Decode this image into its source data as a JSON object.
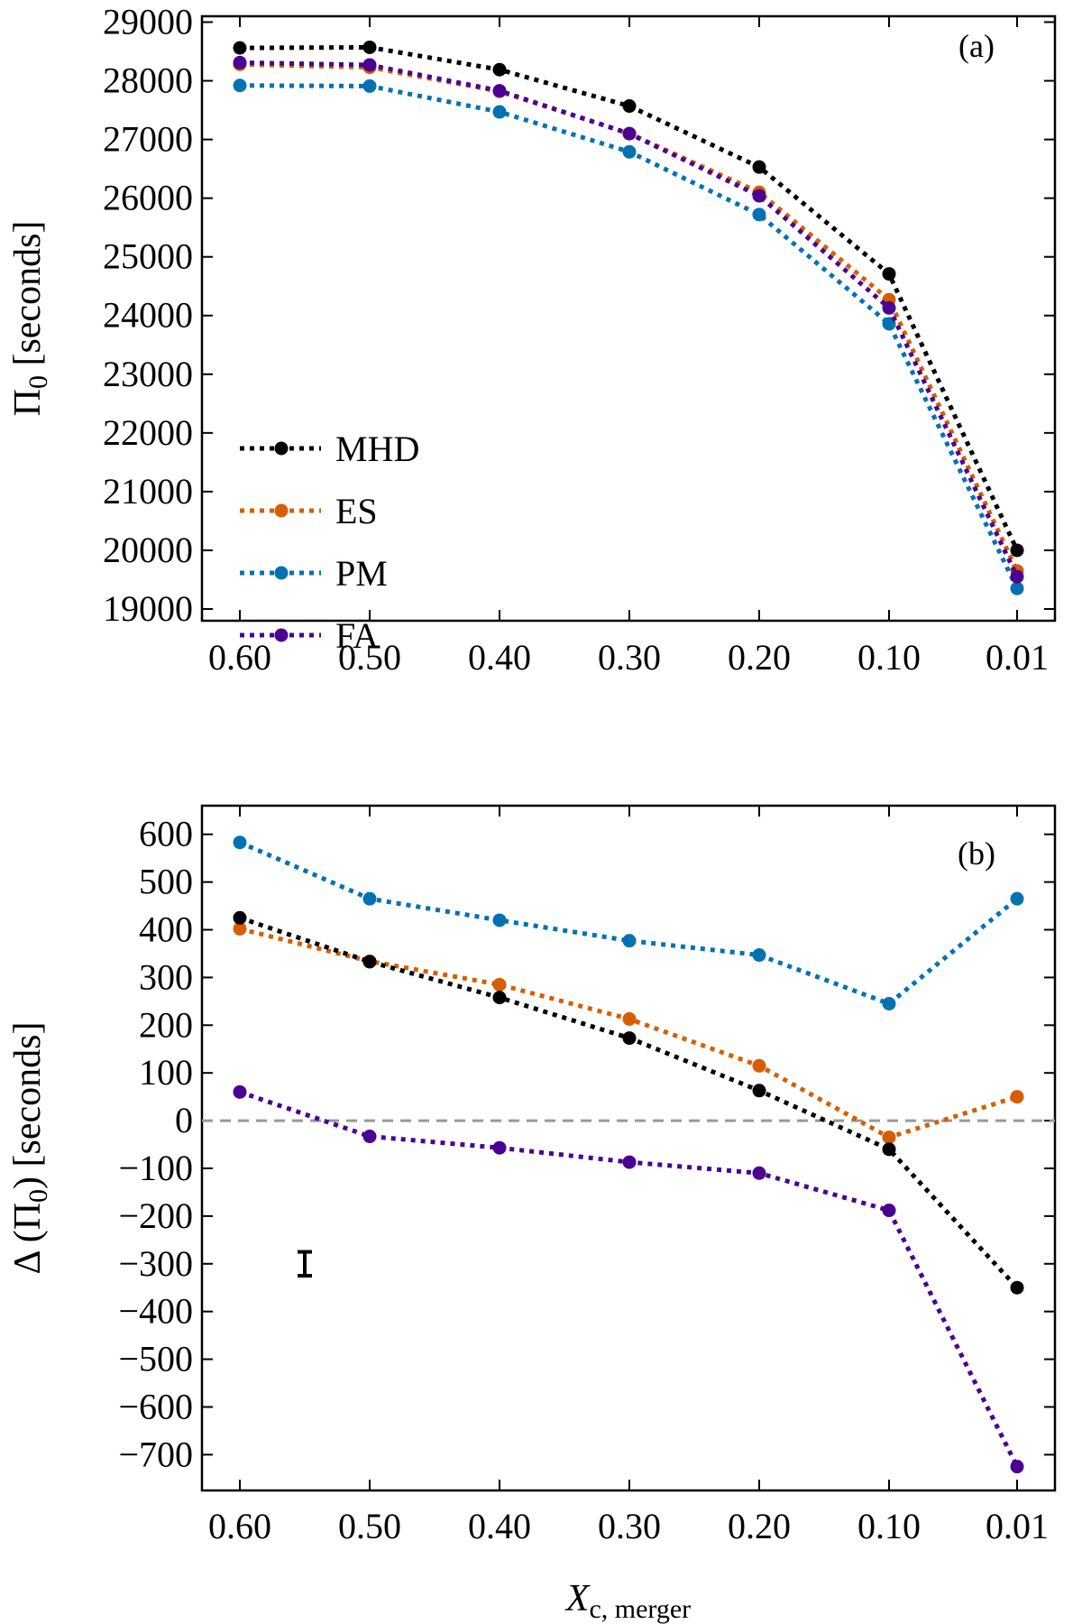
{
  "chart_data": [
    {
      "panel": "a",
      "type": "line",
      "panel_label": "(a)",
      "ylabel": "Π",
      "ylabel_sub": "0",
      "ylabel_unit": " [seconds]",
      "categories": [
        "0.60",
        "0.50",
        "0.40",
        "0.30",
        "0.20",
        "0.10",
        "0.01"
      ],
      "ylim": [
        18800,
        29100
      ],
      "yticks": [
        19000,
        20000,
        21000,
        22000,
        23000,
        24000,
        25000,
        26000,
        27000,
        28000,
        29000
      ],
      "legend": {
        "placement": "left-center",
        "entries": [
          "MHD",
          "ES",
          "PM",
          "FA"
        ]
      },
      "series": [
        {
          "name": "MHD",
          "color": "#000000",
          "values": [
            28560,
            28570,
            28190,
            27570,
            26530,
            24710,
            20000
          ]
        },
        {
          "name": "ES",
          "color": "#d55e00",
          "values": [
            28280,
            28230,
            27820,
            27100,
            26100,
            24270,
            19650
          ]
        },
        {
          "name": "PM",
          "color": "#0072b2",
          "values": [
            27920,
            27910,
            27470,
            26790,
            25720,
            23860,
            19350
          ]
        },
        {
          "name": "FA",
          "color": "#4b0092",
          "values": [
            28310,
            28270,
            27830,
            27100,
            26040,
            24130,
            19550
          ]
        }
      ]
    },
    {
      "panel": "b",
      "type": "line",
      "panel_label": "(b)",
      "ylabel_prefix": "Δ (Π",
      "ylabel_sub": "0",
      "ylabel_unit": ") [seconds]",
      "xlabel": "X",
      "xlabel_sub": "c, merger",
      "categories": [
        "0.60",
        "0.50",
        "0.40",
        "0.30",
        "0.20",
        "0.10",
        "0.01"
      ],
      "ylim": [
        -775,
        660
      ],
      "yticks": [
        600,
        500,
        400,
        300,
        200,
        100,
        0,
        -100,
        -200,
        -300,
        -400,
        -500,
        -600,
        -700
      ],
      "reference_line": {
        "y": 0,
        "color": "#999999",
        "style": "dashed"
      },
      "error_bar": {
        "x": 0.55,
        "y": -300,
        "err": 25,
        "color": "#000000"
      },
      "series": [
        {
          "name": "MHD",
          "color": "#000000",
          "values": [
            425,
            333,
            258,
            173,
            63,
            -60,
            -350
          ]
        },
        {
          "name": "ES",
          "color": "#d55e00",
          "values": [
            402,
            334,
            285,
            213,
            115,
            -35,
            50
          ]
        },
        {
          "name": "PM",
          "color": "#0072b2",
          "values": [
            583,
            465,
            420,
            377,
            347,
            245,
            465
          ]
        },
        {
          "name": "FA",
          "color": "#4b0092",
          "values": [
            60,
            -33,
            -57,
            -87,
            -110,
            -188,
            -725
          ]
        }
      ]
    }
  ]
}
